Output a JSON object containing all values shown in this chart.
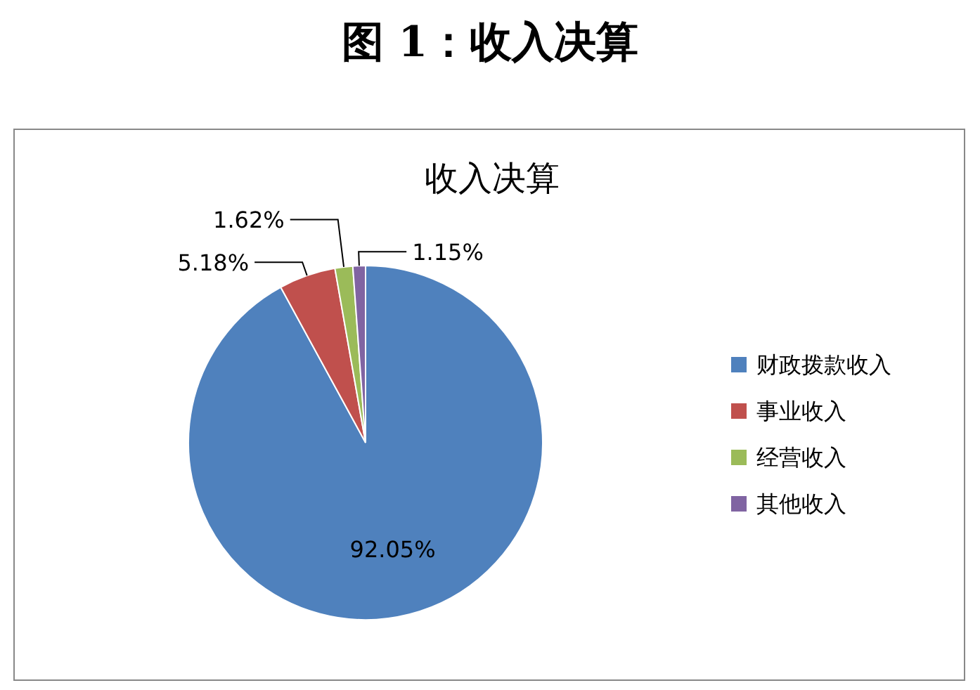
{
  "chart_data": {
    "type": "pie",
    "title": "图 1：收入决算",
    "subtitle": "收入决算",
    "categories": [
      "财政拨款收入",
      "事业收入",
      "经营收入",
      "其他收入"
    ],
    "values": [
      92.05,
      5.18,
      1.62,
      1.15
    ],
    "colors": [
      "#4f81bd",
      "#c0504d",
      "#9bbb59",
      "#8064a2"
    ],
    "value_labels": [
      "92.05%",
      "5.18%",
      "1.62%",
      "1.15%"
    ],
    "legend": "right"
  }
}
